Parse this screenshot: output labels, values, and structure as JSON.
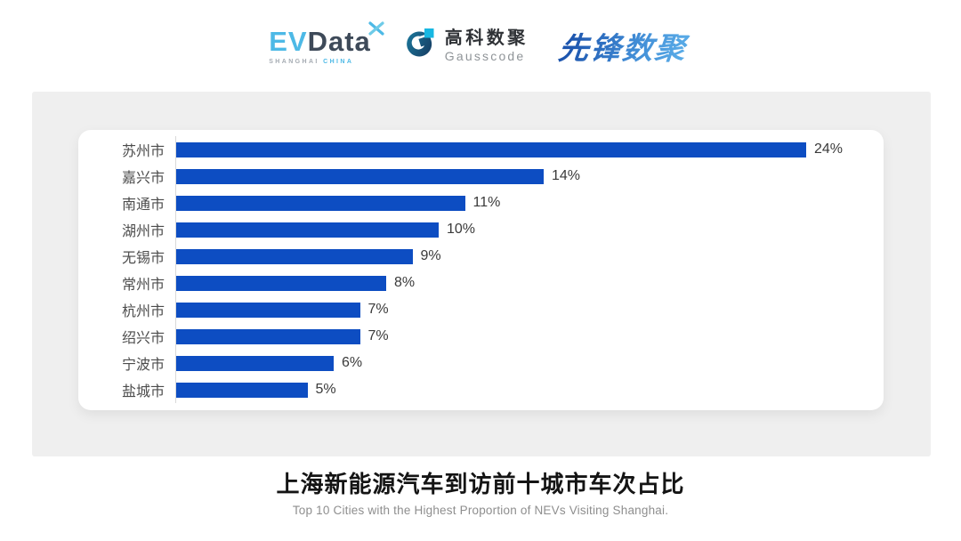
{
  "header": {
    "evdata_logo": {
      "ev": "EV",
      "data": "Data",
      "sub_shanghai": "SHANGHAI",
      "sub_china": "CHINA",
      "accent_color": "#4db9e6",
      "dark_color": "#3e4a59"
    },
    "gausscode_logo": {
      "cn": "高科数聚",
      "en": "Gausscode",
      "icon": "gausscode-g-icon",
      "icon_dark_color": "#16395f",
      "icon_teal_color": "#1b7a9e",
      "icon_cyan_color": "#18b7e2"
    },
    "xianfeng_logo": {
      "text": "先锋数聚",
      "color_start": "#1d55ae",
      "color_end": "#57a9e6"
    }
  },
  "chart_data": {
    "type": "bar",
    "orientation": "horizontal",
    "categories": [
      "苏州市",
      "嘉兴市",
      "南通市",
      "湖州市",
      "无锡市",
      "常州市",
      "杭州市",
      "绍兴市",
      "宁波市",
      "盐城市"
    ],
    "values": [
      24,
      14,
      11,
      10,
      9,
      8,
      7,
      7,
      6,
      5
    ],
    "value_labels": [
      "24%",
      "14%",
      "11%",
      "10%",
      "9%",
      "8%",
      "7%",
      "7%",
      "6%",
      "5%"
    ],
    "xlim": [
      0,
      24
    ],
    "bar_color": "#0d4dc2",
    "axis_line_color": "#d9d9d9",
    "grid": false,
    "legend": false,
    "value_label_position": "end-of-bar",
    "title": "上海新能源汽车到访前十城市车次占比",
    "subtitle": "Top 10 Cities with the Highest Proportion of  NEVs Visiting Shanghai."
  },
  "footer": {
    "title": "上海新能源汽车到访前十城市车次占比",
    "subtitle": "Top 10 Cities with the Highest Proportion of  NEVs Visiting Shanghai."
  }
}
